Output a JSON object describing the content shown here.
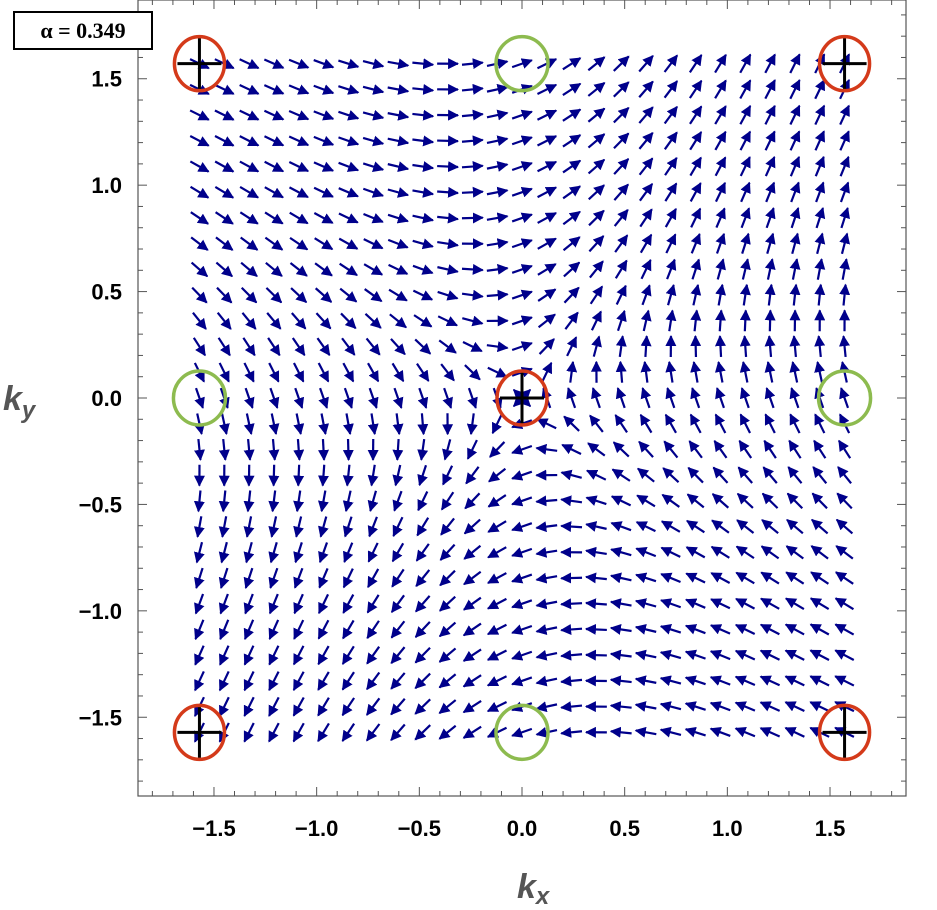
{
  "chart_data": {
    "type": "vector_field",
    "annotation": "α = 0.349",
    "xlabel": {
      "base": "k",
      "sub": "x"
    },
    "ylabel": {
      "base": "k",
      "sub": "y"
    },
    "xlim": [
      -1.87,
      1.87
    ],
    "ylim": [
      -1.87,
      1.87
    ],
    "x_ticks": [
      -1.5,
      -1.0,
      -0.5,
      0.0,
      0.5,
      1.0,
      1.5
    ],
    "y_ticks": [
      -1.5,
      -1.0,
      -0.5,
      0.0,
      0.5,
      1.0,
      1.5
    ],
    "x_tick_labels": [
      "−1.5",
      "−1.0",
      "−0.5",
      "0.0",
      "0.5",
      "1.0",
      "1.5"
    ],
    "y_tick_labels": [
      "1.5",
      "1.0",
      "0.5",
      "0.0",
      "−0.5",
      "−1.0",
      "−1.5"
    ],
    "field": {
      "description": "d(kx,ky) = (sin ky − α sin kx, sin kx + α sin ky) normalized",
      "alpha": 0.349,
      "domain": [
        -1.5708,
        1.5708
      ],
      "grid_points": 27,
      "color": "#00008B"
    },
    "markers": {
      "red_circles": [
        [
          -1.5708,
          1.5708
        ],
        [
          1.5708,
          1.5708
        ],
        [
          0.0,
          0.0
        ],
        [
          -1.5708,
          -1.5708
        ],
        [
          1.5708,
          -1.5708
        ]
      ],
      "green_circles": [
        [
          0.0,
          1.5708
        ],
        [
          -1.5708,
          0.0
        ],
        [
          1.5708,
          0.0
        ],
        [
          0.0,
          -1.5708
        ]
      ],
      "red_color": "#D43A1A",
      "green_color": "#8DBB4F"
    }
  }
}
